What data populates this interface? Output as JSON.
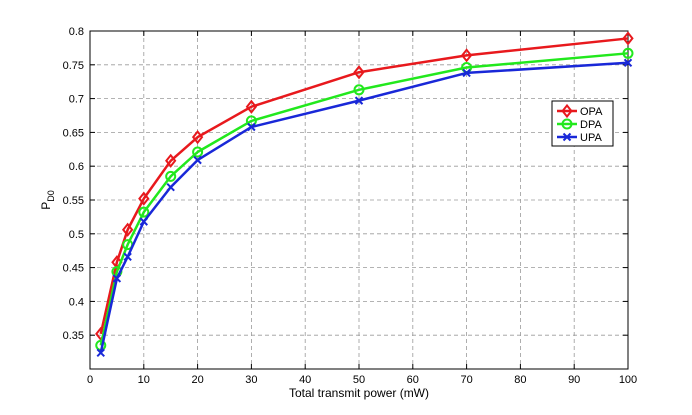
{
  "chart_data": {
    "type": "line",
    "title": "",
    "xlabel": "Total transmit power (mW)",
    "ylabel_main": "P",
    "ylabel_sub": "D0",
    "xlim": [
      0,
      100
    ],
    "ylim": [
      0.3,
      0.8
    ],
    "xticks": [
      0,
      10,
      20,
      30,
      40,
      50,
      60,
      70,
      80,
      90,
      100
    ],
    "yticks": [
      0.35,
      0.4,
      0.45,
      0.5,
      0.55,
      0.6,
      0.65,
      0.7,
      0.75,
      0.8
    ],
    "ytick_labels": [
      "0.35",
      "0.4",
      "0.45",
      "0.5",
      "0.55",
      "0.6",
      "0.65",
      "0.7",
      "0.75",
      "0.8"
    ],
    "grid": true,
    "legend_position": "right",
    "x": [
      2,
      5,
      7,
      10,
      15,
      20,
      30,
      50,
      70,
      100
    ],
    "series": [
      {
        "name": "OPA",
        "color": "#e8191d",
        "marker": "diamond",
        "values": [
          0.352,
          0.458,
          0.506,
          0.552,
          0.608,
          0.643,
          0.688,
          0.739,
          0.764,
          0.789
        ]
      },
      {
        "name": "DPA",
        "color": "#22e81d",
        "marker": "circle",
        "values": [
          0.335,
          0.444,
          0.484,
          0.532,
          0.585,
          0.621,
          0.667,
          0.713,
          0.746,
          0.767
        ]
      },
      {
        "name": "UPA",
        "color": "#1928d8",
        "marker": "x",
        "values": [
          0.324,
          0.434,
          0.466,
          0.518,
          0.569,
          0.609,
          0.658,
          0.697,
          0.738,
          0.753
        ]
      }
    ]
  }
}
